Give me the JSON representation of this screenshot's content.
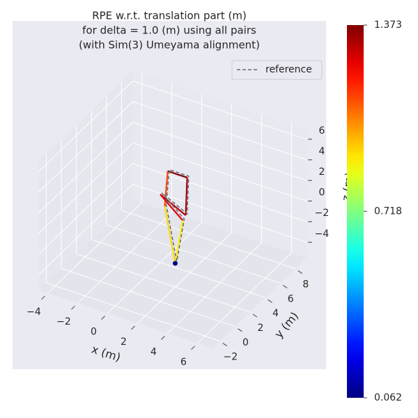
{
  "chart_data": {
    "type": "line3d",
    "title": [
      "RPE w.r.t. translation part (m)",
      "for delta = 1.0 (m) using all pairs",
      "(with Sim(3) Umeyama alignment)"
    ],
    "xlabel": "x (m)",
    "ylabel": "y (m)",
    "zlabel": "z (m)",
    "xlim": [
      -4.6,
      7
    ],
    "ylim": [
      -3,
      9.5
    ],
    "zlim": [
      -5.5,
      7
    ],
    "xticks": [
      {
        "value": -4,
        "label": "−4"
      },
      {
        "value": -2,
        "label": "−2"
      },
      0,
      2,
      4,
      6
    ],
    "yticks": [
      {
        "value": -2,
        "label": "−2"
      },
      0,
      2,
      4,
      6,
      8
    ],
    "zticks": [
      {
        "value": -4,
        "label": "−4"
      },
      {
        "value": -2,
        "label": "−2"
      },
      0,
      2,
      4,
      6
    ],
    "grid": true,
    "legend": "upper right",
    "series": [
      {
        "name": "reference",
        "color": "#666677",
        "x": [
          2,
          1.3,
          1.5,
          2.8,
          2.7,
          1,
          2.5,
          2
        ],
        "y": [
          2.2,
          2.2,
          2.2,
          2.2,
          2.2,
          2.2,
          2.2,
          2.2
        ],
        "z": [
          -3.2,
          2,
          5.5,
          5.5,
          1.8,
          3,
          1.2,
          -3.2
        ]
      }
    ],
    "trajectory": {
      "x": [
        2,
        1.3,
        1.5,
        2.8,
        2.7,
        1,
        2.5,
        2
      ],
      "y": [
        2,
        2,
        2,
        2,
        2,
        2,
        2,
        2
      ],
      "z": [
        -3.2,
        2,
        5.5,
        5.5,
        1.8,
        3,
        1.2,
        -3.2
      ],
      "error": [
        0.93,
        1.12,
        1.37,
        1.33,
        1.3,
        1.25,
        0.9,
        0.062
      ]
    },
    "colormap": "jet",
    "clim": [
      0.062,
      1.373
    ],
    "cticks": [
      0.062,
      0.718,
      1.373
    ]
  }
}
